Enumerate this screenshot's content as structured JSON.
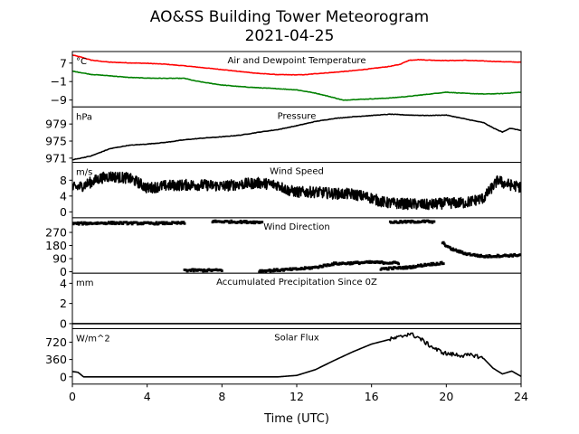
{
  "figure": {
    "title": "AO&SS Building Tower Meteorogram",
    "subtitle": "2021-04-25",
    "xlabel": "Time (UTC)"
  },
  "chart_data": {
    "type": "line",
    "x_unit": "hours UTC",
    "x_ticks": [
      0,
      4,
      8,
      12,
      16,
      20,
      24
    ],
    "xlim": [
      0,
      24
    ],
    "panels": [
      {
        "id": "temp",
        "title": "Air and Dewpoint Temperature",
        "unit": "°C",
        "ylim": [
          -12,
          12
        ],
        "y_ticks": [
          7,
          -1,
          -9
        ],
        "y_tick_labels": [
          "7",
          "−1",
          "−9"
        ],
        "series": [
          {
            "color": "#ff0000",
            "style": "line",
            "points": [
              [
                0,
                10.5
              ],
              [
                0.5,
                9.5
              ],
              [
                1,
                8.3
              ],
              [
                1.5,
                7.8
              ],
              [
                2,
                7.4
              ],
              [
                3,
                7.1
              ],
              [
                4,
                6.9
              ],
              [
                5,
                6.5
              ],
              [
                6,
                5.8
              ],
              [
                7,
                5
              ],
              [
                8,
                4.2
              ],
              [
                9,
                3.3
              ],
              [
                10,
                2.5
              ],
              [
                11,
                2
              ],
              [
                12,
                1.9
              ],
              [
                12.5,
                2
              ],
              [
                13,
                2.4
              ],
              [
                14,
                3
              ],
              [
                15,
                3.7
              ],
              [
                16,
                4.6
              ],
              [
                17,
                5.6
              ],
              [
                17.5,
                6.4
              ],
              [
                18,
                8.2
              ],
              [
                18.5,
                8.5
              ],
              [
                19,
                8.3
              ],
              [
                20,
                8.1
              ],
              [
                21,
                8.2
              ],
              [
                22,
                7.9
              ],
              [
                23,
                7.6
              ],
              [
                24,
                7.4
              ]
            ]
          },
          {
            "color": "#008000",
            "style": "line",
            "points": [
              [
                0,
                3.5
              ],
              [
                0.5,
                2.8
              ],
              [
                1,
                2.1
              ],
              [
                2,
                1.5
              ],
              [
                3,
                0.8
              ],
              [
                4,
                0.5
              ],
              [
                5,
                0.4
              ],
              [
                6,
                0.4
              ],
              [
                6.5,
                -0.6
              ],
              [
                7,
                -1.3
              ],
              [
                8,
                -2.5
              ],
              [
                9,
                -3.2
              ],
              [
                10,
                -3.7
              ],
              [
                11,
                -4.1
              ],
              [
                12,
                -4.6
              ],
              [
                13,
                -6
              ],
              [
                14,
                -8
              ],
              [
                14.5,
                -9.1
              ],
              [
                15,
                -8.8
              ],
              [
                16,
                -8.5
              ],
              [
                17,
                -8.1
              ],
              [
                18,
                -7.4
              ],
              [
                19,
                -6.5
              ],
              [
                20,
                -5.6
              ],
              [
                21,
                -6.1
              ],
              [
                22,
                -6.4
              ],
              [
                23,
                -6.2
              ],
              [
                24,
                -5.6
              ]
            ]
          }
        ]
      },
      {
        "id": "pressure",
        "title": "Pressure",
        "unit": "hPa",
        "ylim": [
          970,
          983
        ],
        "y_ticks": [
          979,
          975,
          971
        ],
        "y_tick_labels": [
          "979",
          "975",
          "971"
        ],
        "series": [
          {
            "color": "#000000",
            "style": "line",
            "points": [
              [
                0,
                970.6
              ],
              [
                1,
                971.5
              ],
              [
                2,
                973.2
              ],
              [
                3,
                974
              ],
              [
                4,
                974.3
              ],
              [
                5,
                974.7
              ],
              [
                6,
                975.3
              ],
              [
                7,
                975.7
              ],
              [
                8,
                976
              ],
              [
                9,
                976.4
              ],
              [
                10,
                977.1
              ],
              [
                11,
                977.7
              ],
              [
                12,
                978.6
              ],
              [
                13,
                979.6
              ],
              [
                14,
                980.3
              ],
              [
                15,
                980.7
              ],
              [
                16,
                981
              ],
              [
                17,
                981.3
              ],
              [
                18,
                981.1
              ],
              [
                19,
                981
              ],
              [
                20,
                981.1
              ],
              [
                21,
                980.2
              ],
              [
                22,
                979.3
              ],
              [
                22.5,
                978.1
              ],
              [
                23,
                977.1
              ],
              [
                23.4,
                978
              ],
              [
                24,
                977.5
              ]
            ]
          }
        ]
      },
      {
        "id": "wind_speed",
        "title": "Wind Speed",
        "unit": "m/s",
        "ylim": [
          -1.5,
          12.5
        ],
        "y_ticks": [
          8,
          4,
          0
        ],
        "y_tick_labels": [
          "8",
          "4",
          "0"
        ],
        "series": [
          {
            "color": "#000000",
            "style": "line",
            "noise": 1.4,
            "points": [
              [
                0,
                6
              ],
              [
                0.5,
                6.5
              ],
              [
                1,
                7.5
              ],
              [
                1.5,
                8.5
              ],
              [
                2,
                9
              ],
              [
                3,
                8.5
              ],
              [
                3.5,
                7.5
              ],
              [
                4,
                6
              ],
              [
                4.5,
                6.3
              ],
              [
                5,
                6.6
              ],
              [
                6,
                6.8
              ],
              [
                7,
                6.8
              ],
              [
                8,
                6.5
              ],
              [
                9,
                7
              ],
              [
                10,
                7.3
              ],
              [
                11,
                6.8
              ],
              [
                11.5,
                5.5
              ],
              [
                12,
                5
              ],
              [
                13,
                5
              ],
              [
                14,
                4.6
              ],
              [
                15,
                4.5
              ],
              [
                16,
                3.5
              ],
              [
                16.5,
                2.6
              ],
              [
                17,
                2.2
              ],
              [
                18,
                2
              ],
              [
                19,
                1.8
              ],
              [
                20,
                2.2
              ],
              [
                21,
                2.3
              ],
              [
                22,
                3.5
              ],
              [
                22.8,
                8.2
              ],
              [
                23,
                7.3
              ],
              [
                24,
                6.2
              ]
            ]
          }
        ]
      },
      {
        "id": "wind_direction",
        "title": "Wind Direction",
        "unit": "",
        "ylim": [
          -10,
          370
        ],
        "y_ticks": [
          270,
          180,
          90,
          0
        ],
        "y_tick_labels": [
          "270",
          "180",
          "90",
          "0"
        ],
        "series": [
          {
            "color": "#000000",
            "style": "dots",
            "noise": 14,
            "segments": [
              [
                [
                  0,
                  330
                ],
                [
                  2,
                  335
                ],
                [
                  4,
                  332
                ],
                [
                  6,
                  334
                ]
              ],
              [
                [
                  6,
                  10
                ],
                [
                  8,
                  10
                ]
              ],
              [
                [
                  7.5,
                  345
                ],
                [
                  10,
                  340
                ],
                [
                  10.2,
                  342
                ]
              ],
              [
                [
                  10,
                  5
                ],
                [
                  12,
                  18
                ],
                [
                  13,
                  30
                ],
                [
                  14,
                  55
                ],
                [
                  16,
                  65
                ],
                [
                  17.5,
                  60
                ]
              ],
              [
                [
                  16.5,
                  20
                ],
                [
                  18,
                  30
                ],
                [
                  19,
                  50
                ],
                [
                  19.9,
                  60
                ]
              ],
              [
                [
                  17,
                  340
                ],
                [
                  19,
                  345
                ],
                [
                  19.4,
                  338
                ]
              ],
              [
                [
                  19.8,
                  200
                ],
                [
                  20.2,
                  160
                ],
                [
                  21,
                  125
                ],
                [
                  22,
                  105
                ],
                [
                  23,
                  110
                ],
                [
                  24,
                  115
                ]
              ]
            ]
          }
        ]
      },
      {
        "id": "precip",
        "title": "Accumulated Precipitation Since 0Z",
        "unit": "mm",
        "ylim": [
          -0.5,
          5
        ],
        "y_ticks": [
          4,
          2,
          0
        ],
        "y_tick_labels": [
          "4",
          "2",
          "0"
        ],
        "series": [
          {
            "color": "#000000",
            "style": "line",
            "points": [
              [
                0,
                0
              ],
              [
                24,
                0
              ]
            ]
          }
        ]
      },
      {
        "id": "solar",
        "title": "Solar Flux",
        "unit": "W/m^2",
        "ylim": [
          -150,
          1000
        ],
        "y_ticks": [
          720,
          360,
          0
        ],
        "y_tick_labels": [
          "720",
          "360",
          "0"
        ],
        "series": [
          {
            "color": "#000000",
            "style": "line",
            "points": [
              [
                0,
                110
              ],
              [
                0.3,
                95
              ],
              [
                0.6,
                0
              ],
              [
                11,
                0
              ],
              [
                12,
                30
              ],
              [
                13,
                150
              ],
              [
                14,
                340
              ],
              [
                15,
                520
              ],
              [
                16,
                680
              ],
              [
                17,
                780
              ],
              [
                17.5,
                820
              ],
              [
                18,
                900
              ],
              [
                18.5,
                820
              ],
              [
                19,
                680
              ],
              [
                19.5,
                560
              ],
              [
                20,
                480
              ],
              [
                21,
                440
              ],
              [
                21.5,
                450
              ],
              [
                22,
                380
              ],
              [
                22.5,
                180
              ],
              [
                23,
                60
              ],
              [
                23.5,
                120
              ],
              [
                24,
                10
              ]
            ]
          }
        ]
      }
    ]
  }
}
